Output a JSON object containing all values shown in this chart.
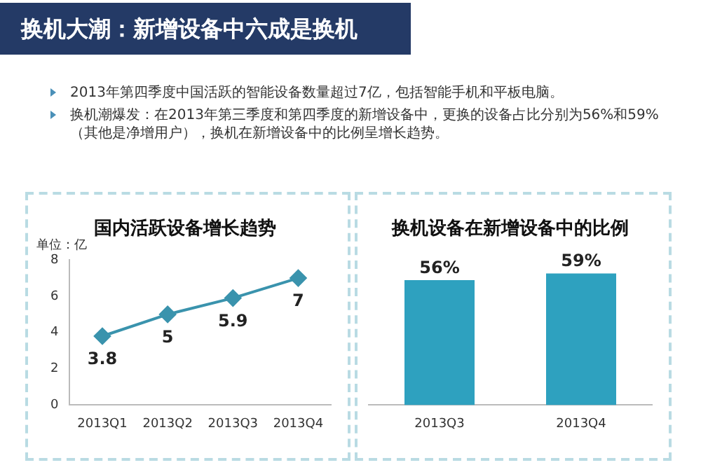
{
  "chart_data": [
    {
      "type": "other",
      "title": "换机大潮：新增设备中六成是换机",
      "annotations": [
        "2013年第四季度中国活跃的智能设备数量超过7亿，包括智能手机和平板电脑。",
        "换机潮爆发：在2013年第三季度和第四季度的新增设备中，更换的设备占比分别为56%和59%（其他是净增用户），换机在新增设备中的比例呈增长趋势。"
      ]
    },
    {
      "type": "line",
      "title": "国内活跃设备增长趋势",
      "ylabel": "单位：亿",
      "categories": [
        "2013Q1",
        "2013Q2",
        "2013Q3",
        "2013Q4"
      ],
      "series": [
        {
          "color": "#3a93ad",
          "values": [
            3.8,
            5,
            5.9,
            7
          ]
        }
      ],
      "ylim": [
        0,
        8
      ],
      "yticks": [
        0,
        2,
        4,
        6,
        8
      ],
      "marker": "diamond",
      "data_labels": true,
      "grid": false,
      "legend": false
    },
    {
      "type": "bar",
      "title": "换机设备在新增设备中的比例",
      "categories": [
        "2013Q3",
        "2013Q4"
      ],
      "series": [
        {
          "color": "#2ea1bf",
          "values": [
            56,
            59
          ],
          "value_labels": [
            "56%",
            "59%"
          ]
        }
      ],
      "tick_labels": "x",
      "grid": false,
      "legend": false
    }
  ]
}
